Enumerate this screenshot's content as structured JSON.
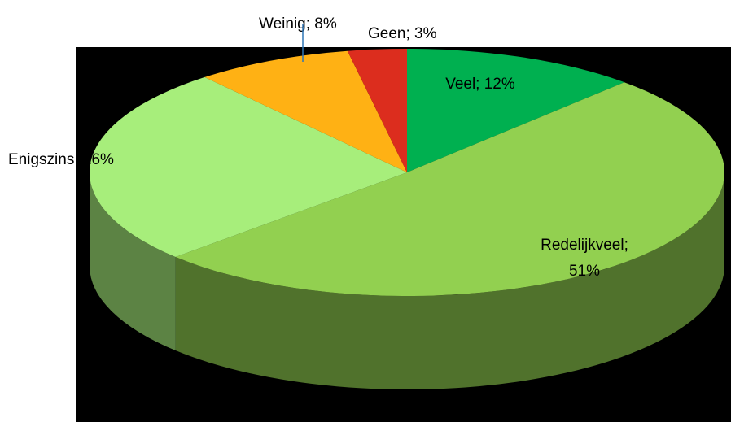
{
  "chart_data": {
    "type": "pie3d",
    "values": [
      12,
      51,
      26,
      8,
      3
    ],
    "value_labels": [
      "Veel; 12%",
      "Redelijkveel; 51%",
      "Enigszins; 26%",
      "Weinig; 8%",
      "Geen; 3%"
    ],
    "colors": [
      "#00b050",
      "#92d050",
      "#a7ee7b",
      "#ffb114",
      "#dc2d1e"
    ]
  }
}
